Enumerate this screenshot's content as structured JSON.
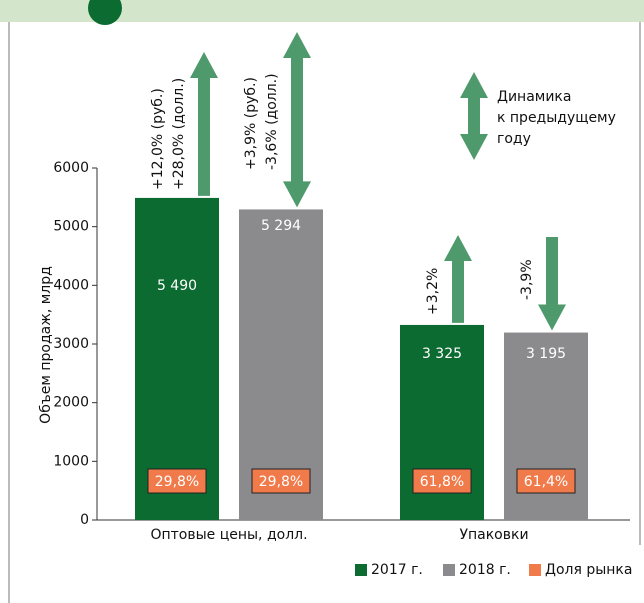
{
  "chart_data": {
    "type": "bar",
    "y_label": "Объем продаж, млрд",
    "categories": [
      "Оптовые цены, долл.",
      "Упаковки"
    ],
    "ylim": [
      0,
      6000
    ],
    "yticks": [
      0,
      1000,
      2000,
      3000,
      4000,
      5000,
      6000
    ],
    "series": [
      {
        "name": "2017 г.",
        "color": "#0b6b30",
        "values": [
          5490,
          3325
        ],
        "value_labels": [
          "5 490",
          "3 325"
        ],
        "share_values": [
          29.8,
          61.8
        ],
        "share_labels": [
          "29,8%",
          "61,8%"
        ],
        "changes": [
          {
            "labels": [
              "+12,0% (руб.)",
              "+28,0% (долл.)"
            ],
            "direction": "up"
          },
          {
            "labels": [
              "+3,2%"
            ],
            "direction": "up"
          }
        ]
      },
      {
        "name": "2018 г.",
        "color": "#8b8b8d",
        "values": [
          5294,
          3195
        ],
        "value_labels": [
          "5 294",
          "3 195"
        ],
        "share_values": [
          29.8,
          61.4
        ],
        "share_labels": [
          "29,8%",
          "61,4%"
        ],
        "changes": [
          {
            "labels": [
              "+3,9% (руб.)",
              "-3,6% (долл.)"
            ],
            "direction": "both"
          },
          {
            "labels": [
              "-3,9%"
            ],
            "direction": "down"
          }
        ]
      }
    ],
    "share_legend": {
      "name": "Доля рынка",
      "color": "#f07a4a"
    },
    "arrow_color": "#4f9a6c",
    "arrow_legend": [
      "Динамика",
      "к предыдущему",
      "году"
    ]
  }
}
